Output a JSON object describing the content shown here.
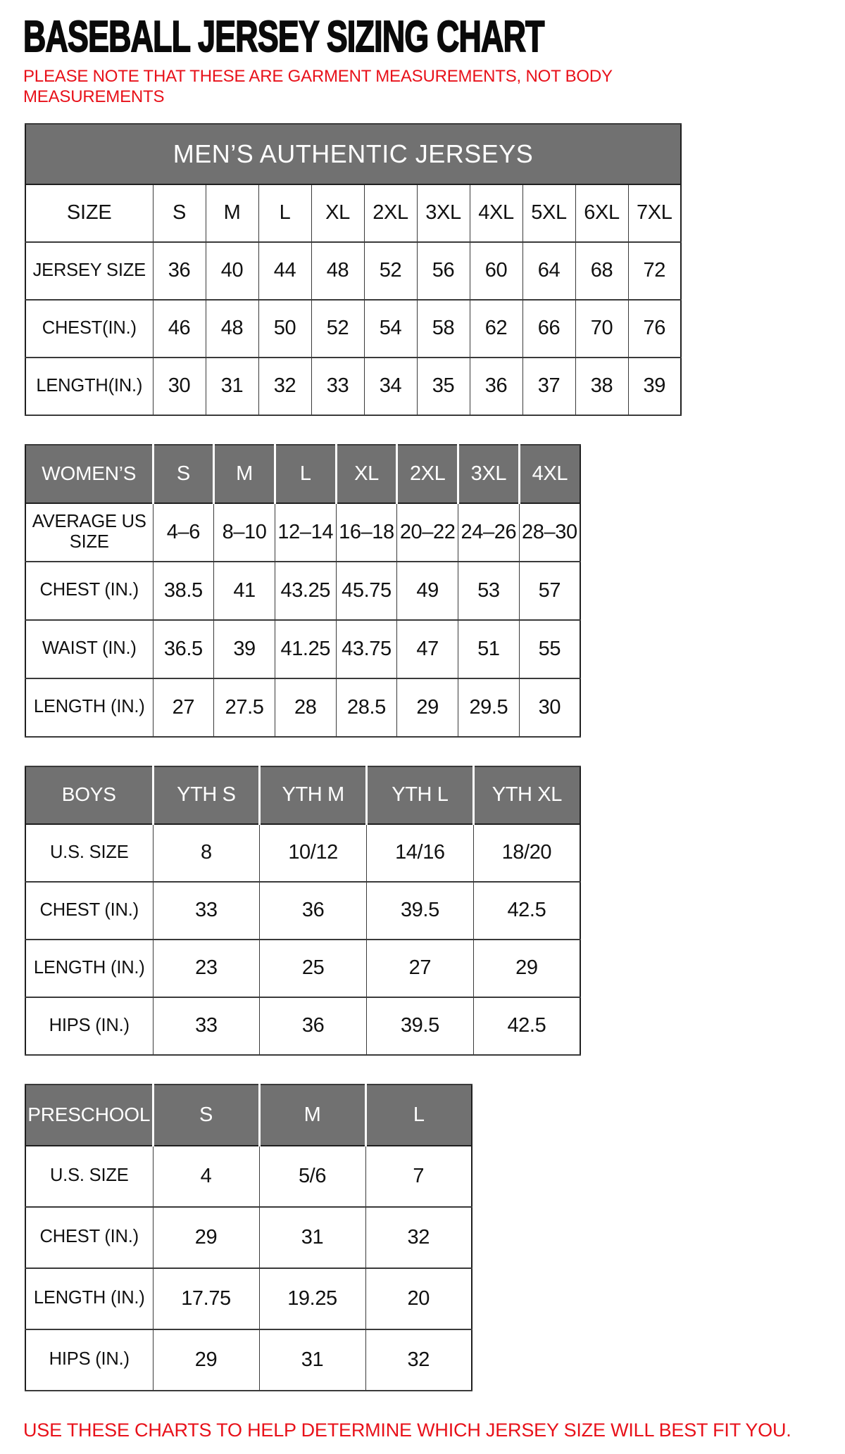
{
  "page": {
    "title": "BASEBALL JERSEY SIZING CHART",
    "note": "PLEASE NOTE THAT THESE ARE GARMENT MEASUREMENTS, NOT BODY MEASUREMENTS",
    "footer": "USE THESE CHARTS TO HELP DETERMINE WHICH JERSEY SIZE WILL BEST FIT YOU.",
    "colors": {
      "accent_red": "#e8111a",
      "header_gray": "#717171",
      "border_dark": "#1f1f1f",
      "text_black": "#111111"
    }
  },
  "tables": [
    {
      "id": "mens",
      "banner": "MEN’S AUTHENTIC JERSEYS",
      "header": {
        "label": "SIZE",
        "style": "plain",
        "columns": [
          "S",
          "M",
          "L",
          "XL",
          "2XL",
          "3XL",
          "4XL",
          "5XL",
          "6XL",
          "7XL"
        ]
      },
      "rows": [
        {
          "label": "JERSEY SIZE",
          "values": [
            "36",
            "40",
            "44",
            "48",
            "52",
            "56",
            "60",
            "64",
            "68",
            "72"
          ]
        },
        {
          "label": "CHEST(IN.)",
          "values": [
            "46",
            "48",
            "50",
            "52",
            "54",
            "58",
            "62",
            "66",
            "70",
            "76"
          ]
        },
        {
          "label": "LENGTH(IN.)",
          "values": [
            "30",
            "31",
            "32",
            "33",
            "34",
            "35",
            "36",
            "37",
            "38",
            "39"
          ]
        }
      ]
    },
    {
      "id": "womens",
      "banner": null,
      "header": {
        "label": "WOMEN’S",
        "style": "gray",
        "columns": [
          "S",
          "M",
          "L",
          "XL",
          "2XL",
          "3XL",
          "4XL"
        ]
      },
      "rows": [
        {
          "label": "AVERAGE US SIZE",
          "values": [
            "4–6",
            "8–10",
            "12–14",
            "16–18",
            "20–22",
            "24–26",
            "28–30"
          ]
        },
        {
          "label": "CHEST (IN.)",
          "values": [
            "38.5",
            "41",
            "43.25",
            "45.75",
            "49",
            "53",
            "57"
          ]
        },
        {
          "label": "WAIST (IN.)",
          "values": [
            "36.5",
            "39",
            "41.25",
            "43.75",
            "47",
            "51",
            "55"
          ]
        },
        {
          "label": "LENGTH (IN.)",
          "values": [
            "27",
            "27.5",
            "28",
            "28.5",
            "29",
            "29.5",
            "30"
          ]
        }
      ]
    },
    {
      "id": "boys",
      "banner": null,
      "header": {
        "label": "BOYS",
        "style": "gray",
        "columns": [
          "YTH S",
          "YTH M",
          "YTH L",
          "YTH XL"
        ]
      },
      "rows": [
        {
          "label": "U.S. SIZE",
          "values": [
            "8",
            "10/12",
            "14/16",
            "18/20"
          ]
        },
        {
          "label": "CHEST (IN.)",
          "values": [
            "33",
            "36",
            "39.5",
            "42.5"
          ]
        },
        {
          "label": "LENGTH (IN.)",
          "values": [
            "23",
            "25",
            "27",
            "29"
          ]
        },
        {
          "label": "HIPS (IN.)",
          "values": [
            "33",
            "36",
            "39.5",
            "42.5"
          ]
        }
      ]
    },
    {
      "id": "preschool",
      "banner": null,
      "header": {
        "label": "PRESCHOOL",
        "style": "gray",
        "columns": [
          "S",
          "M",
          "L"
        ]
      },
      "rows": [
        {
          "label": "U.S. SIZE",
          "values": [
            "4",
            "5/6",
            "7"
          ]
        },
        {
          "label": "CHEST (IN.)",
          "values": [
            "29",
            "31",
            "32"
          ]
        },
        {
          "label": "LENGTH (IN.)",
          "values": [
            "17.75",
            "19.25",
            "20"
          ]
        },
        {
          "label": "HIPS (IN.)",
          "values": [
            "29",
            "31",
            "32"
          ]
        }
      ]
    }
  ]
}
